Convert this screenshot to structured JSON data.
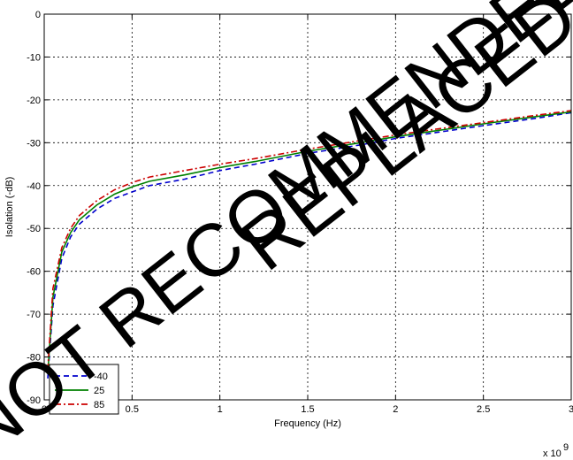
{
  "chart_data": {
    "type": "line",
    "title": "",
    "xlabel": "Frequency (Hz)",
    "ylabel": "Isolation (-dB)",
    "x_multiplier_label": "x 10",
    "x_multiplier_exponent": "9",
    "xlim": [
      0,
      3
    ],
    "ylim": [
      -90,
      0
    ],
    "x_ticks": [
      0,
      0.5,
      1,
      1.5,
      2,
      2.5,
      3
    ],
    "x_tick_labels": [
      "0",
      "0.5",
      "1",
      "1.5",
      "2",
      "2.5",
      "3"
    ],
    "y_ticks": [
      0,
      -10,
      -20,
      -30,
      -40,
      -50,
      -60,
      -70,
      -80,
      -90
    ],
    "y_tick_labels": [
      "0",
      "-10",
      "-20",
      "-30",
      "-40",
      "-50",
      "-60",
      "-70",
      "-80",
      "-90"
    ],
    "grid": true,
    "legend": {
      "position": "bottom-left"
    },
    "series": [
      {
        "name": "-40",
        "color": "#0000cc",
        "dash": "dashed",
        "x": [
          0.02,
          0.05,
          0.1,
          0.15,
          0.2,
          0.3,
          0.4,
          0.5,
          0.6,
          0.8,
          1.0,
          1.2,
          1.5,
          1.8,
          2.0,
          2.2,
          2.5,
          2.8,
          3.0
        ],
        "y": [
          -85,
          -68,
          -57,
          -52,
          -49,
          -45.5,
          -43,
          -41.5,
          -40,
          -38.5,
          -36.5,
          -35,
          -32.5,
          -30.5,
          -29,
          -27.8,
          -26,
          -24.3,
          -23
        ]
      },
      {
        "name": "25",
        "color": "#008000",
        "dash": "solid",
        "x": [
          0.02,
          0.05,
          0.1,
          0.15,
          0.2,
          0.3,
          0.4,
          0.5,
          0.6,
          0.8,
          1.0,
          1.2,
          1.5,
          1.8,
          2.0,
          2.2,
          2.5,
          2.8,
          3.0
        ],
        "y": [
          -84,
          -66,
          -55.5,
          -51,
          -48,
          -44.5,
          -42,
          -40.3,
          -39,
          -37.5,
          -35.8,
          -34.4,
          -32,
          -30,
          -28.6,
          -27.4,
          -25.6,
          -23.9,
          -22.8
        ]
      },
      {
        "name": "85",
        "color": "#cc0000",
        "dash": "dashdot",
        "x": [
          0.02,
          0.05,
          0.1,
          0.15,
          0.2,
          0.3,
          0.4,
          0.5,
          0.6,
          0.8,
          1.0,
          1.2,
          1.5,
          1.8,
          2.0,
          2.2,
          2.5,
          2.8,
          3.0
        ],
        "y": [
          -83,
          -64,
          -54.5,
          -50,
          -47,
          -43.5,
          -41,
          -39.3,
          -38,
          -36.5,
          -35,
          -33.7,
          -31.5,
          -29.5,
          -28.2,
          -27,
          -25.3,
          -23.6,
          -22.5
        ]
      }
    ]
  },
  "watermark": {
    "line1": "NOT RECOMMENDED",
    "line2": "REPLACED"
  }
}
